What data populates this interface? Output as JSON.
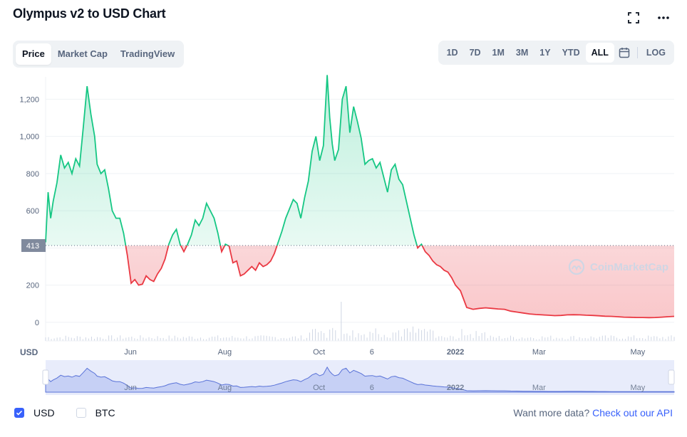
{
  "header": {
    "title": "Olympus v2 to USD Chart"
  },
  "icons": {
    "fullscreen": "fullscreen-icon",
    "more": "more-icon",
    "calendar": "calendar-icon"
  },
  "tabs": [
    {
      "label": "Price",
      "active": true
    },
    {
      "label": "Market Cap",
      "active": false
    },
    {
      "label": "TradingView",
      "active": false
    }
  ],
  "ranges": [
    {
      "label": "1D"
    },
    {
      "label": "7D"
    },
    {
      "label": "1M"
    },
    {
      "label": "3M"
    },
    {
      "label": "1Y"
    },
    {
      "label": "YTD"
    },
    {
      "label": "ALL",
      "active": true
    }
  ],
  "log_label": "LOG",
  "axis": {
    "currency_label": "USD",
    "current_price_label": "413"
  },
  "watermark": "CoinMarketCap",
  "footer": {
    "usd": "USD",
    "btc": "BTC",
    "more_text": "Want more data?",
    "more_link": "Check out our API"
  },
  "colors": {
    "up": "#16c784",
    "down": "#ea3943",
    "accent": "#3861fb",
    "grid": "#eff2f5"
  },
  "chart_data": {
    "type": "line",
    "title": "Olympus v2 to USD Chart",
    "baseline": 413,
    "ylim": [
      -100,
      1320
    ],
    "yticks": [
      0,
      200,
      400,
      600,
      800,
      1000,
      1200
    ],
    "ytick_labels": [
      "0",
      "200",
      "",
      "600",
      "800",
      "1,000",
      "1,200"
    ],
    "xticks": [
      {
        "label": "Jun",
        "t": 0.135
      },
      {
        "label": "Aug",
        "t": 0.285
      },
      {
        "label": "Oct",
        "t": 0.435
      },
      {
        "label": "6",
        "t": 0.519
      },
      {
        "label": "2022",
        "t": 0.652
      },
      {
        "label": "Mar",
        "t": 0.785
      },
      {
        "label": "May",
        "t": 0.942
      }
    ],
    "x": [
      0,
      0.004,
      0.008,
      0.012,
      0.018,
      0.024,
      0.03,
      0.036,
      0.042,
      0.048,
      0.054,
      0.06,
      0.066,
      0.072,
      0.078,
      0.082,
      0.088,
      0.094,
      0.1,
      0.106,
      0.112,
      0.118,
      0.124,
      0.13,
      0.136,
      0.142,
      0.148,
      0.154,
      0.16,
      0.166,
      0.172,
      0.178,
      0.184,
      0.19,
      0.196,
      0.202,
      0.208,
      0.214,
      0.22,
      0.226,
      0.232,
      0.238,
      0.244,
      0.25,
      0.256,
      0.262,
      0.268,
      0.274,
      0.28,
      0.286,
      0.292,
      0.298,
      0.304,
      0.31,
      0.316,
      0.322,
      0.328,
      0.334,
      0.34,
      0.346,
      0.352,
      0.358,
      0.364,
      0.37,
      0.376,
      0.382,
      0.388,
      0.394,
      0.4,
      0.406,
      0.412,
      0.418,
      0.424,
      0.43,
      0.436,
      0.442,
      0.448,
      0.452,
      0.456,
      0.46,
      0.466,
      0.472,
      0.478,
      0.484,
      0.49,
      0.496,
      0.502,
      0.508,
      0.514,
      0.52,
      0.526,
      0.532,
      0.538,
      0.544,
      0.55,
      0.556,
      0.562,
      0.568,
      0.574,
      0.58,
      0.586,
      0.592,
      0.598,
      0.604,
      0.61,
      0.616,
      0.622,
      0.628,
      0.634,
      0.64,
      0.646,
      0.652,
      0.66,
      0.67,
      0.68,
      0.69,
      0.7,
      0.71,
      0.72,
      0.73,
      0.74,
      0.75,
      0.76,
      0.77,
      0.78,
      0.79,
      0.8,
      0.81,
      0.82,
      0.83,
      0.84,
      0.85,
      0.86,
      0.87,
      0.88,
      0.89,
      0.9,
      0.91,
      0.92,
      0.93,
      0.94,
      0.95,
      0.96,
      0.97,
      0.98,
      0.99,
      1.0
    ],
    "values": [
      430,
      700,
      560,
      650,
      750,
      900,
      830,
      860,
      800,
      880,
      840,
      1050,
      1270,
      1120,
      1000,
      850,
      800,
      820,
      720,
      600,
      560,
      560,
      480,
      360,
      210,
      230,
      200,
      205,
      250,
      230,
      220,
      260,
      290,
      340,
      420,
      470,
      500,
      420,
      380,
      420,
      470,
      550,
      520,
      560,
      640,
      600,
      560,
      480,
      380,
      420,
      410,
      320,
      330,
      250,
      260,
      280,
      300,
      280,
      320,
      300,
      310,
      330,
      370,
      430,
      490,
      560,
      610,
      660,
      640,
      560,
      670,
      760,
      920,
      1000,
      870,
      950,
      1330,
      1100,
      960,
      870,
      930,
      1200,
      1270,
      1020,
      1160,
      1080,
      990,
      850,
      870,
      880,
      830,
      860,
      780,
      700,
      820,
      850,
      770,
      740,
      650,
      560,
      470,
      400,
      420,
      380,
      360,
      330,
      310,
      300,
      280,
      270,
      240,
      200,
      170,
      80,
      70,
      75,
      78,
      75,
      72,
      70,
      60,
      55,
      50,
      45,
      42,
      40,
      38,
      36,
      37,
      40,
      41,
      40,
      38,
      37,
      35,
      33,
      32,
      30,
      28,
      27,
      26,
      26,
      25,
      26,
      28,
      30,
      32
    ]
  }
}
